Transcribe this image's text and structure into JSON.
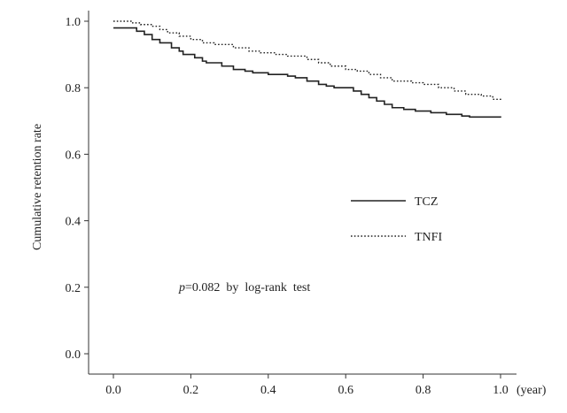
{
  "chart_data": {
    "type": "line",
    "ylabel": "Cumulative retention rate",
    "x_unit": "(year)",
    "xlim": [
      0,
      1.0
    ],
    "ylim": [
      0,
      1.0
    ],
    "x_ticks": [
      "0.0",
      "0.2",
      "0.4",
      "0.6",
      "0.8",
      "1.0"
    ],
    "y_ticks": [
      "0.0",
      "0.2",
      "0.4",
      "0.6",
      "0.8",
      "1.0"
    ],
    "grid": false,
    "legend_position": "center-right",
    "annotation": {
      "p_symbol": "p",
      "rest": "=0.082  by  log-rank  test"
    },
    "series": [
      {
        "name": "TCZ",
        "line_style": "solid",
        "color": "#222222",
        "points": [
          [
            0.0,
            0.98
          ],
          [
            0.06,
            0.97
          ],
          [
            0.08,
            0.96
          ],
          [
            0.1,
            0.945
          ],
          [
            0.12,
            0.935
          ],
          [
            0.15,
            0.92
          ],
          [
            0.17,
            0.91
          ],
          [
            0.18,
            0.9
          ],
          [
            0.21,
            0.89
          ],
          [
            0.23,
            0.88
          ],
          [
            0.24,
            0.875
          ],
          [
            0.28,
            0.865
          ],
          [
            0.31,
            0.855
          ],
          [
            0.34,
            0.85
          ],
          [
            0.36,
            0.845
          ],
          [
            0.4,
            0.84
          ],
          [
            0.45,
            0.835
          ],
          [
            0.47,
            0.83
          ],
          [
            0.5,
            0.82
          ],
          [
            0.53,
            0.81
          ],
          [
            0.55,
            0.805
          ],
          [
            0.57,
            0.8
          ],
          [
            0.62,
            0.79
          ],
          [
            0.64,
            0.78
          ],
          [
            0.66,
            0.77
          ],
          [
            0.68,
            0.76
          ],
          [
            0.7,
            0.75
          ],
          [
            0.72,
            0.74
          ],
          [
            0.75,
            0.735
          ],
          [
            0.78,
            0.73
          ],
          [
            0.82,
            0.725
          ],
          [
            0.86,
            0.72
          ],
          [
            0.9,
            0.715
          ],
          [
            0.92,
            0.712
          ],
          [
            1.0,
            0.71
          ]
        ]
      },
      {
        "name": "TNFI",
        "line_style": "dotted",
        "color": "#222222",
        "points": [
          [
            0.0,
            1.0
          ],
          [
            0.05,
            0.995
          ],
          [
            0.07,
            0.99
          ],
          [
            0.1,
            0.985
          ],
          [
            0.12,
            0.975
          ],
          [
            0.14,
            0.965
          ],
          [
            0.17,
            0.955
          ],
          [
            0.2,
            0.945
          ],
          [
            0.23,
            0.935
          ],
          [
            0.26,
            0.93
          ],
          [
            0.31,
            0.92
          ],
          [
            0.35,
            0.91
          ],
          [
            0.38,
            0.905
          ],
          [
            0.42,
            0.9
          ],
          [
            0.45,
            0.895
          ],
          [
            0.5,
            0.885
          ],
          [
            0.53,
            0.875
          ],
          [
            0.56,
            0.865
          ],
          [
            0.6,
            0.855
          ],
          [
            0.63,
            0.85
          ],
          [
            0.66,
            0.84
          ],
          [
            0.69,
            0.83
          ],
          [
            0.72,
            0.82
          ],
          [
            0.77,
            0.815
          ],
          [
            0.8,
            0.81
          ],
          [
            0.84,
            0.8
          ],
          [
            0.88,
            0.79
          ],
          [
            0.91,
            0.78
          ],
          [
            0.95,
            0.775
          ],
          [
            0.98,
            0.765
          ],
          [
            1.0,
            0.76
          ]
        ]
      }
    ]
  }
}
